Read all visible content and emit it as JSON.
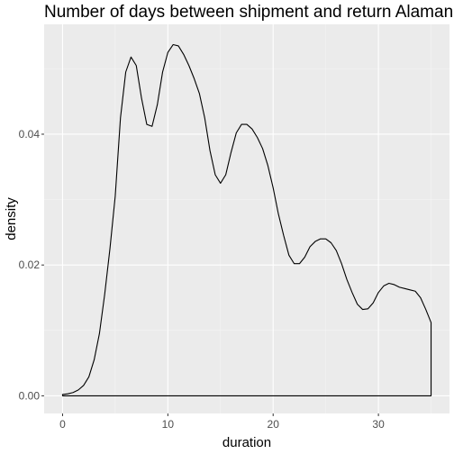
{
  "chart_data": {
    "type": "area",
    "title": "Number of days between shipment and return Alamance",
    "xlabel": "duration",
    "ylabel": "density",
    "xlim": [
      -1.75,
      36.75
    ],
    "ylim": [
      -0.0027,
      0.0568
    ],
    "x_ticks": [
      0,
      10,
      20,
      30
    ],
    "x_tick_labels": [
      "0",
      "10",
      "20",
      "30"
    ],
    "y_ticks": [
      0.0,
      0.02,
      0.04
    ],
    "y_tick_labels": [
      "0.00",
      "0.02",
      "0.04"
    ],
    "grid": true,
    "legend": "none",
    "series": [
      {
        "x": [
          0,
          0.5,
          1,
          1.5,
          2,
          2.5,
          3,
          3.5,
          4,
          4.5,
          5,
          5.5,
          6,
          6.5,
          7,
          7.5,
          8,
          8.5,
          9,
          9.5,
          10,
          10.5,
          11,
          11.5,
          12,
          12.5,
          13,
          13.5,
          14,
          14.5,
          15,
          15.5,
          16,
          16.5,
          17,
          17.5,
          18,
          18.5,
          19,
          19.5,
          20,
          20.5,
          21,
          21.5,
          22,
          22.5,
          23,
          23.5,
          24,
          24.5,
          25,
          25.5,
          26,
          26.5,
          27,
          27.5,
          28,
          28.5,
          29,
          29.5,
          30,
          30.5,
          31,
          31.5,
          32,
          32.5,
          33,
          33.5,
          34,
          34.5,
          35
        ],
        "y": [
          0.0002,
          0.0003,
          0.0005,
          0.0009,
          0.0016,
          0.0029,
          0.0055,
          0.0095,
          0.0155,
          0.0225,
          0.0305,
          0.0425,
          0.0495,
          0.0518,
          0.0505,
          0.0455,
          0.0415,
          0.0412,
          0.0445,
          0.0495,
          0.0525,
          0.0537,
          0.0535,
          0.0522,
          0.0505,
          0.0485,
          0.0462,
          0.0425,
          0.0375,
          0.0338,
          0.0325,
          0.0338,
          0.0372,
          0.0402,
          0.0415,
          0.0415,
          0.0408,
          0.0395,
          0.0378,
          0.0352,
          0.0318,
          0.0278,
          0.0245,
          0.0215,
          0.0202,
          0.0202,
          0.0212,
          0.0228,
          0.0236,
          0.024,
          0.024,
          0.0234,
          0.0222,
          0.0202,
          0.0178,
          0.0158,
          0.014,
          0.0132,
          0.0133,
          0.0142,
          0.0158,
          0.0168,
          0.0172,
          0.017,
          0.0166,
          0.0164,
          0.0162,
          0.016,
          0.015,
          0.0132,
          0.0112
        ]
      }
    ]
  }
}
